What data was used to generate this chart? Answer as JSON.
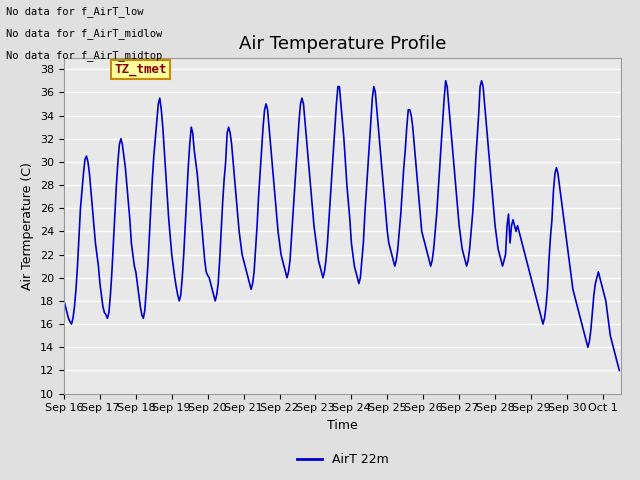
{
  "title": "Air Temperature Profile",
  "xlabel": "Time",
  "ylabel": "Air Termperature (C)",
  "ylim": [
    10,
    39
  ],
  "yticks": [
    10,
    12,
    14,
    16,
    18,
    20,
    22,
    24,
    26,
    28,
    30,
    32,
    34,
    36,
    38
  ],
  "line_color": "#0000CC",
  "line_width": 1.2,
  "legend_label": "AirT 22m",
  "legend_line_color": "#0000CC",
  "annotations": [
    "No data for f_AirT_low",
    "No data for f_AirT_midlow",
    "No data for f_AirT_midtop"
  ],
  "tz_label": "TZ_tmet",
  "background_color": "#E0E0E0",
  "plot_background": "#E8E8E8",
  "grid_color": "#FFFFFF",
  "title_fontsize": 13,
  "axis_label_fontsize": 9,
  "tick_fontsize": 8,
  "temperature_data": [
    18.0,
    17.5,
    17.0,
    16.5,
    16.2,
    16.0,
    16.5,
    17.5,
    19.0,
    21.0,
    23.5,
    26.0,
    27.5,
    29.0,
    30.2,
    30.5,
    30.0,
    29.0,
    27.5,
    26.0,
    24.5,
    23.0,
    22.0,
    21.0,
    19.5,
    18.5,
    17.5,
    17.0,
    16.8,
    16.5,
    17.0,
    18.5,
    20.5,
    23.0,
    25.5,
    28.0,
    30.0,
    31.5,
    32.0,
    31.5,
    30.5,
    29.5,
    28.0,
    26.5,
    25.0,
    23.0,
    22.0,
    21.0,
    20.5,
    19.5,
    18.5,
    17.5,
    16.8,
    16.5,
    17.2,
    19.0,
    21.0,
    23.5,
    26.0,
    28.5,
    30.5,
    32.0,
    33.5,
    35.0,
    35.5,
    34.5,
    33.0,
    31.0,
    29.0,
    27.0,
    25.0,
    23.5,
    22.0,
    21.0,
    20.0,
    19.2,
    18.5,
    18.0,
    18.5,
    20.0,
    22.0,
    24.5,
    27.0,
    29.5,
    31.5,
    33.0,
    32.5,
    31.0,
    30.0,
    29.0,
    27.5,
    26.0,
    24.5,
    23.0,
    21.5,
    20.5,
    20.2,
    20.0,
    19.5,
    19.0,
    18.5,
    18.0,
    18.5,
    19.5,
    21.5,
    24.0,
    26.5,
    28.5,
    30.0,
    32.5,
    33.0,
    32.5,
    31.5,
    30.0,
    28.5,
    27.0,
    25.5,
    24.0,
    23.0,
    22.0,
    21.5,
    21.0,
    20.5,
    20.0,
    19.5,
    19.0,
    19.5,
    20.5,
    22.5,
    24.5,
    27.0,
    29.0,
    31.0,
    33.0,
    34.5,
    35.0,
    34.5,
    33.0,
    31.5,
    30.0,
    28.5,
    27.0,
    25.5,
    24.0,
    23.0,
    22.0,
    21.5,
    21.0,
    20.5,
    20.0,
    20.5,
    21.5,
    23.5,
    25.5,
    27.5,
    29.5,
    31.5,
    33.5,
    35.0,
    35.5,
    35.0,
    33.5,
    32.0,
    30.5,
    29.0,
    27.5,
    26.0,
    24.5,
    23.5,
    22.5,
    21.5,
    21.0,
    20.5,
    20.0,
    20.5,
    21.5,
    23.0,
    25.0,
    27.0,
    29.0,
    31.0,
    33.0,
    35.0,
    36.5,
    36.5,
    35.0,
    33.5,
    32.0,
    30.0,
    28.0,
    26.5,
    25.0,
    23.0,
    22.0,
    21.0,
    20.5,
    20.0,
    19.5,
    20.0,
    21.5,
    23.0,
    25.5,
    27.5,
    29.5,
    31.5,
    33.5,
    35.5,
    36.5,
    36.0,
    34.5,
    33.0,
    31.5,
    30.0,
    28.5,
    27.0,
    25.5,
    24.0,
    23.0,
    22.5,
    22.0,
    21.5,
    21.0,
    21.5,
    22.5,
    24.0,
    25.5,
    27.5,
    29.5,
    31.0,
    33.0,
    34.5,
    34.5,
    34.0,
    33.0,
    31.5,
    30.0,
    28.5,
    27.0,
    25.5,
    24.0,
    23.5,
    23.0,
    22.5,
    22.0,
    21.5,
    21.0,
    21.5,
    22.5,
    24.0,
    25.5,
    27.5,
    29.5,
    31.5,
    33.5,
    35.5,
    37.0,
    36.5,
    35.0,
    33.5,
    32.0,
    30.5,
    29.0,
    27.5,
    26.0,
    24.5,
    23.5,
    22.5,
    22.0,
    21.5,
    21.0,
    21.5,
    22.5,
    24.0,
    25.5,
    27.5,
    30.0,
    32.0,
    34.0,
    36.5,
    37.0,
    36.5,
    35.0,
    33.5,
    32.0,
    30.5,
    29.0,
    27.5,
    26.0,
    24.5,
    23.5,
    22.5,
    22.0,
    21.5,
    21.0,
    21.5,
    22.0,
    24.5,
    25.5,
    23.0,
    24.5,
    25.0,
    24.5,
    24.0,
    24.5,
    24.0,
    23.5,
    23.0,
    22.5,
    22.0,
    21.5,
    21.0,
    20.5,
    20.0,
    19.5,
    19.0,
    18.5,
    18.0,
    17.5,
    17.0,
    16.5,
    16.0,
    16.5,
    17.5,
    19.0,
    21.5,
    23.5,
    25.0,
    27.5,
    29.0,
    29.5,
    29.0,
    28.0,
    27.0,
    26.0,
    25.0,
    24.0,
    23.0,
    22.0,
    21.0,
    20.0,
    19.0,
    18.5,
    18.0,
    17.5,
    17.0,
    16.5,
    16.0,
    15.5,
    15.0,
    14.5,
    14.0,
    14.5,
    15.5,
    17.0,
    18.5,
    19.5,
    20.0,
    20.5,
    20.0,
    19.5,
    19.0,
    18.5,
    18.0,
    17.0,
    16.0,
    15.0,
    14.5,
    14.0,
    13.5,
    13.0,
    12.5,
    12.0
  ]
}
